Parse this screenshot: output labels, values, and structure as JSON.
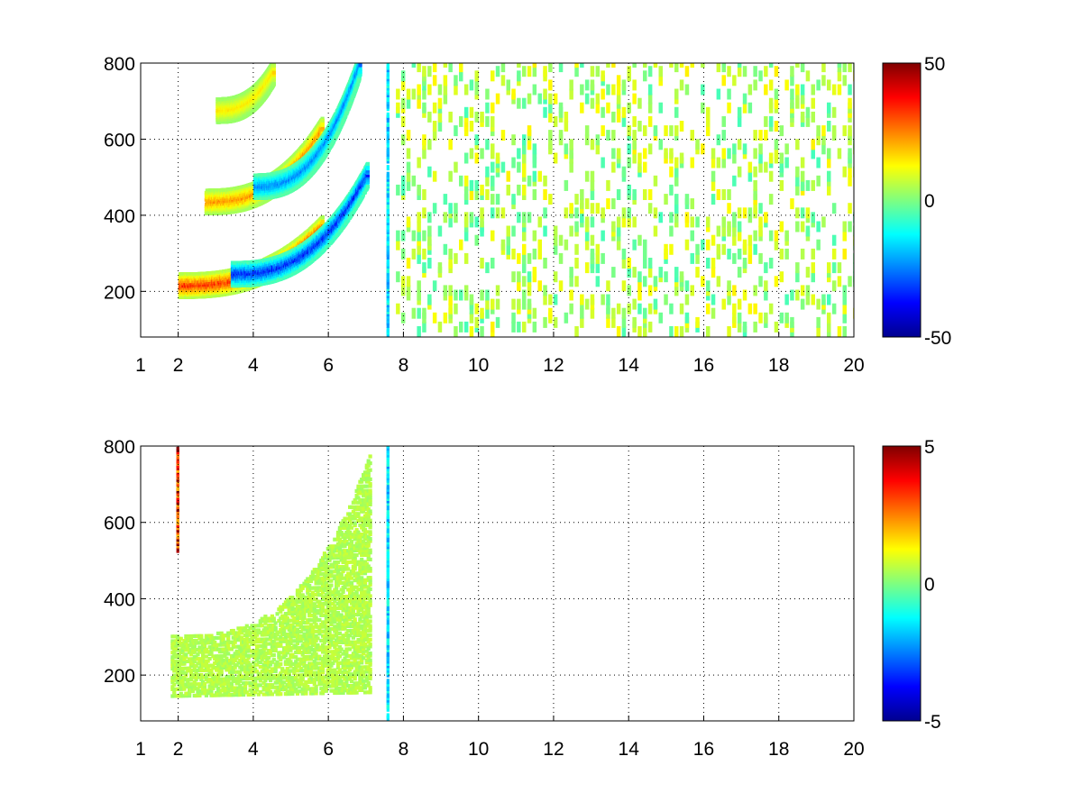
{
  "chart_data": [
    {
      "type": "heatmap",
      "title": "",
      "xlabel": "",
      "ylabel": "",
      "xlim": [
        1,
        20
      ],
      "ylim": [
        80,
        800
      ],
      "x_ticks": [
        1,
        2,
        4,
        6,
        8,
        10,
        12,
        14,
        16,
        18,
        20
      ],
      "x_tick_labels": [
        "1",
        "2",
        "4",
        "6",
        "8",
        "10",
        "12",
        "14",
        "16",
        "18",
        "20"
      ],
      "y_ticks": [
        200,
        400,
        600,
        800
      ],
      "y_tick_labels": [
        "200",
        "400",
        "600",
        "800"
      ],
      "grid": true,
      "colormap": "jet",
      "clim": [
        -50,
        50
      ],
      "colorbar_ticks": [
        -50,
        0,
        50
      ],
      "colorbar_tick_labels": [
        "-50",
        "0",
        "50"
      ],
      "features": [
        {
          "kind": "arc",
          "x_from": 2.0,
          "x_to": 5.8,
          "y_from": 210,
          "y_to": 360,
          "value": 40
        },
        {
          "kind": "arc",
          "x_from": 3.4,
          "x_to": 7.0,
          "y_from": 240,
          "y_to": 500,
          "value": -42
        },
        {
          "kind": "arc",
          "x_from": 2.7,
          "x_to": 5.8,
          "y_from": 430,
          "y_to": 620,
          "value": 28
        },
        {
          "kind": "arc",
          "x_from": 4.0,
          "x_to": 6.8,
          "y_from": 470,
          "y_to": 790,
          "value": -30
        },
        {
          "kind": "arc",
          "x_from": 3.0,
          "x_to": 4.5,
          "y_from": 670,
          "y_to": 770,
          "value": 18
        },
        {
          "kind": "vertical_line",
          "x": 7.55,
          "y_from": 80,
          "y_to": 800,
          "value": -20
        },
        {
          "kind": "scatter_noise",
          "x_from": 7.8,
          "x_to": 20,
          "y_from": 80,
          "y_to": 800,
          "value_range": [
            -6,
            14
          ]
        }
      ]
    },
    {
      "type": "heatmap",
      "title": "",
      "xlabel": "",
      "ylabel": "",
      "xlim": [
        1,
        20
      ],
      "ylim": [
        80,
        800
      ],
      "x_ticks": [
        1,
        2,
        4,
        6,
        8,
        10,
        12,
        14,
        16,
        18,
        20
      ],
      "x_tick_labels": [
        "1",
        "2",
        "4",
        "6",
        "8",
        "10",
        "12",
        "14",
        "16",
        "18",
        "20"
      ],
      "y_ticks": [
        200,
        400,
        600,
        800
      ],
      "y_tick_labels": [
        "200",
        "400",
        "600",
        "800"
      ],
      "grid": true,
      "colormap": "jet",
      "clim": [
        -5,
        5
      ],
      "colorbar_ticks": [
        -5,
        0,
        5
      ],
      "colorbar_tick_labels": [
        "-5",
        "0",
        "5"
      ],
      "features": [
        {
          "kind": "filled_region",
          "x_from": 1.8,
          "x_to": 7.1,
          "y_from": 140,
          "y_to": 790,
          "value": 0.5
        },
        {
          "kind": "vertical_line",
          "x": 7.55,
          "y_from": 80,
          "y_to": 800,
          "value": -2
        },
        {
          "kind": "vertical_line",
          "x": 1.95,
          "y_from": 520,
          "y_to": 800,
          "value": 4.5
        }
      ]
    }
  ]
}
